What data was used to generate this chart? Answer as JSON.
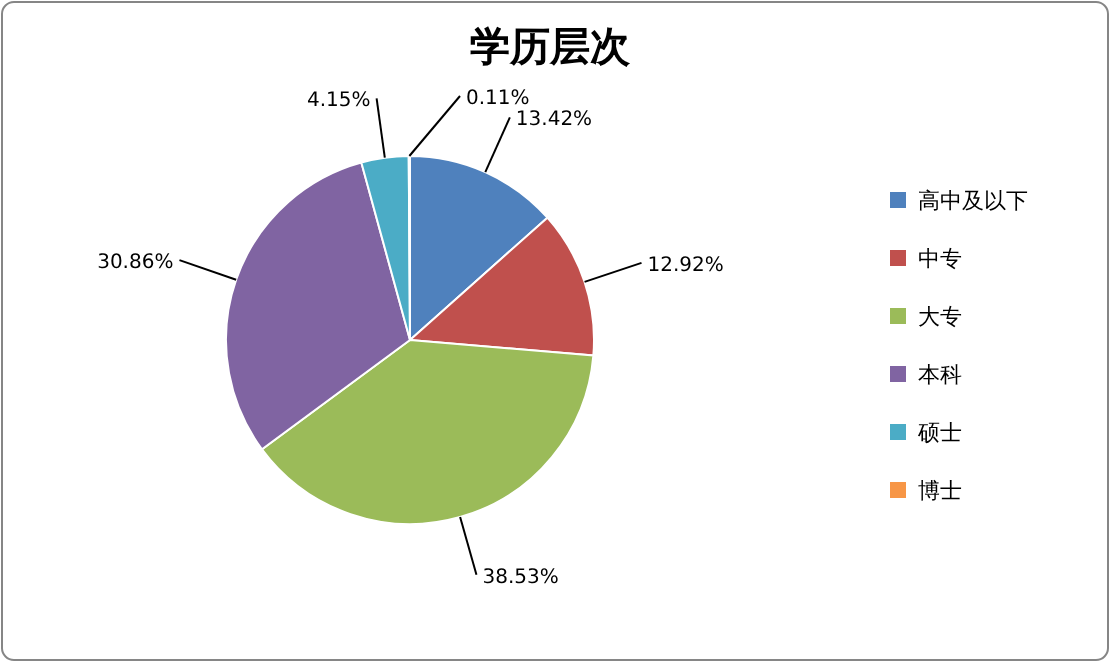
{
  "chart_data": {
    "type": "pie",
    "title": "学历层次",
    "categories": [
      "高中及以下",
      "中专",
      "大专",
      "本科",
      "硕士",
      "博士"
    ],
    "values": [
      13.42,
      12.92,
      38.53,
      30.86,
      4.15,
      0.11
    ],
    "value_labels": [
      "13.42%",
      "12.92%",
      "38.53%",
      "30.86%",
      "4.15%",
      "0.11%"
    ],
    "colors": [
      "#4f81bd",
      "#c0504d",
      "#9bbb59",
      "#8064a2",
      "#4bacc6",
      "#f79646"
    ],
    "legend": "right"
  }
}
